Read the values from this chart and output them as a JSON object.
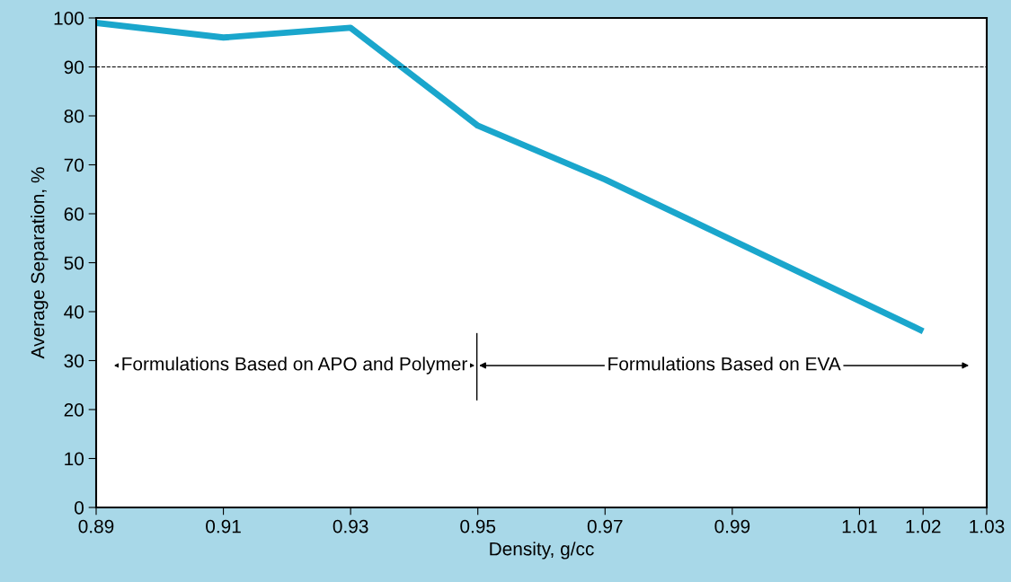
{
  "chart_data": {
    "type": "line",
    "xlabel": "Density, g/cc",
    "ylabel": "Average Separation, %",
    "x": [
      0.89,
      0.91,
      0.93,
      0.95,
      0.97,
      1.02
    ],
    "series": [
      {
        "color": "#1aa6cc",
        "values": [
          99,
          96,
          98,
          78,
          67,
          36
        ]
      }
    ],
    "xlim": [
      0.89,
      1.03
    ],
    "xticks": [
      0.89,
      0.91,
      0.93,
      0.95,
      0.97,
      0.99,
      1.01,
      1.02,
      1.03
    ],
    "ylim": [
      0,
      100
    ],
    "yticks": [
      0,
      10,
      20,
      30,
      40,
      50,
      60,
      70,
      80,
      90,
      100
    ],
    "ref_lines": [
      {
        "axis": "y",
        "value": 90,
        "line_style": "dashed",
        "color": "#000000"
      }
    ],
    "annotations": [
      "Formulations Based on APO and Polymer",
      "Formulations Based on EVA"
    ],
    "grid": false,
    "marker": "none",
    "line_style": "solid"
  }
}
